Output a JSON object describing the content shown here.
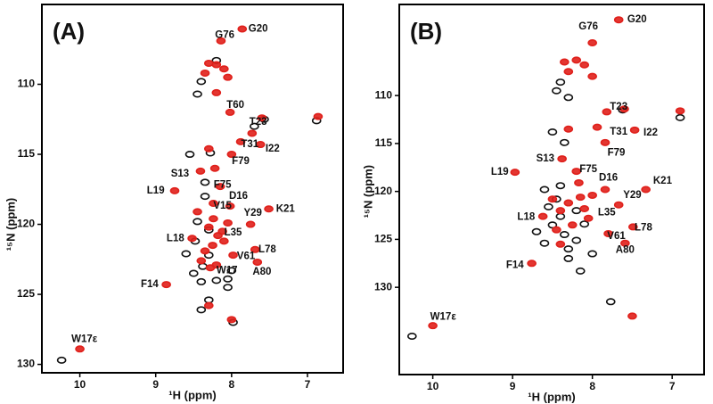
{
  "chart_data": [
    {
      "type": "scatter",
      "title": "(A)",
      "x_label": "¹H (ppm)",
      "y_label": "¹⁵N (ppm)",
      "xlim": [
        10.5,
        6.53
      ],
      "ylim": [
        104.3,
        130.6
      ],
      "xticks": [
        10,
        9,
        8,
        7
      ],
      "yticks": [
        110,
        115,
        120,
        125,
        130
      ],
      "series": [
        {
          "color": "#111111",
          "x": [
            10.24,
            8.4,
            8.45,
            8.2,
            7.7,
            7.57,
            6.88,
            8.55,
            8.28,
            8.35,
            8.3,
            8.48,
            8.38,
            8.5,
            8.4,
            8.2,
            8.05,
            8.3,
            8.6,
            8.45,
            8.0,
            8.4,
            8.3,
            7.98,
            8.05,
            8.35
          ],
          "y": [
            129.7,
            109.8,
            110.7,
            108.3,
            113.0,
            112.5,
            112.6,
            115.0,
            114.9,
            118.0,
            120.4,
            121.2,
            123.0,
            123.5,
            124.1,
            124.0,
            124.5,
            122.2,
            122.1,
            119.8,
            123.3,
            126.1,
            125.4,
            127.0,
            123.9,
            117.0
          ]
        },
        {
          "color": "#e0201b",
          "x": [
            7.86,
            8.14,
            8.02,
            7.73,
            7.88,
            7.62,
            8.0,
            8.41,
            8.75,
            8.24,
            8.02,
            7.51,
            8.24,
            7.75,
            8.12,
            8.52,
            7.69,
            7.98,
            7.66,
            8.28,
            8.86,
            10.0,
            8.3,
            8.2,
            8.1,
            8.35,
            8.05,
            8.2,
            8.18,
            8.25,
            8.35,
            8.1,
            8.3,
            8.4,
            8.2,
            8.05,
            8.15,
            8.3,
            8.22,
            7.6,
            6.86,
            8.45,
            8.0,
            8.3
          ],
          "y": [
            106.05,
            106.9,
            112.0,
            113.5,
            114.1,
            114.3,
            115.0,
            116.2,
            117.6,
            118.5,
            118.7,
            118.9,
            119.6,
            120.0,
            120.5,
            121.0,
            121.8,
            122.2,
            122.7,
            123.1,
            124.3,
            128.9,
            108.5,
            108.6,
            108.9,
            109.2,
            109.5,
            110.6,
            120.8,
            121.5,
            121.9,
            121.2,
            120.2,
            122.6,
            122.9,
            119.9,
            117.3,
            114.6,
            116.0,
            112.4,
            112.3,
            119.1,
            126.8,
            125.8
          ]
        }
      ],
      "annotations": [
        {
          "text": "G20",
          "x": 7.65,
          "y": 106.05
        },
        {
          "text": "G76",
          "x": 8.09,
          "y": 106.5
        },
        {
          "text": "T60",
          "x": 7.95,
          "y": 111.5
        },
        {
          "text": "T23",
          "x": 7.65,
          "y": 112.7
        },
        {
          "text": "T31",
          "x": 7.76,
          "y": 114.3
        },
        {
          "text": "I22",
          "x": 7.46,
          "y": 114.6
        },
        {
          "text": "F79",
          "x": 7.88,
          "y": 115.5
        },
        {
          "text": "S13",
          "x": 8.68,
          "y": 116.4
        },
        {
          "text": "L19",
          "x": 9.0,
          "y": 117.6
        },
        {
          "text": "F75",
          "x": 8.12,
          "y": 117.2
        },
        {
          "text": "D16",
          "x": 7.91,
          "y": 118.0
        },
        {
          "text": "K21",
          "x": 7.29,
          "y": 118.9
        },
        {
          "text": "V15",
          "x": 8.12,
          "y": 118.7
        },
        {
          "text": "Y29",
          "x": 7.72,
          "y": 119.2
        },
        {
          "text": "L35",
          "x": 7.98,
          "y": 120.6
        },
        {
          "text": "L18",
          "x": 8.74,
          "y": 121.0
        },
        {
          "text": "L78",
          "x": 7.53,
          "y": 121.8
        },
        {
          "text": "V61",
          "x": 7.81,
          "y": 122.3
        },
        {
          "text": "A80",
          "x": 7.6,
          "y": 123.4
        },
        {
          "text": "W17",
          "x": 8.06,
          "y": 123.3
        },
        {
          "text": "F14",
          "x": 9.08,
          "y": 124.3
        },
        {
          "text": "W17ε",
          "x": 9.94,
          "y": 128.2
        }
      ]
    },
    {
      "type": "scatter",
      "title": "(B)",
      "x_label": "¹H (ppm)",
      "y_label": "¹⁵N (ppm)",
      "xlim": [
        10.42,
        6.6
      ],
      "ylim": [
        100.5,
        139.1
      ],
      "xticks": [
        10,
        9,
        8,
        7
      ],
      "yticks": [
        110,
        115,
        120,
        125,
        130
      ],
      "series": [
        {
          "color": "#111111",
          "x": [
            10.26,
            8.4,
            8.45,
            8.3,
            7.62,
            6.9,
            8.5,
            8.35,
            8.4,
            8.45,
            8.55,
            8.4,
            8.5,
            8.35,
            8.2,
            8.3,
            8.6,
            8.1,
            8.6,
            8.2,
            8.0,
            8.15,
            7.77,
            8.3,
            8.7
          ],
          "y": [
            135.1,
            108.6,
            109.5,
            110.2,
            111.5,
            112.3,
            113.8,
            114.9,
            119.4,
            120.8,
            121.6,
            122.6,
            123.5,
            124.5,
            125.1,
            126.0,
            125.4,
            123.4,
            119.8,
            122.0,
            126.5,
            128.3,
            131.5,
            127.0,
            124.2
          ]
        },
        {
          "color": "#e0201b",
          "x": [
            7.67,
            8.0,
            7.82,
            7.94,
            7.47,
            7.84,
            8.38,
            8.97,
            8.17,
            7.84,
            7.33,
            7.67,
            8.05,
            8.62,
            7.49,
            7.8,
            7.59,
            8.76,
            10.0,
            8.35,
            8.2,
            8.1,
            8.3,
            8.0,
            8.15,
            8.3,
            8.4,
            8.1,
            8.25,
            8.45,
            8.0,
            8.2,
            8.3,
            7.6,
            6.9,
            8.5,
            8.4,
            7.5
          ],
          "y": [
            102.1,
            104.5,
            111.7,
            113.3,
            113.6,
            114.9,
            116.6,
            118.0,
            119.1,
            119.8,
            119.8,
            121.4,
            122.8,
            122.6,
            123.7,
            124.4,
            125.4,
            127.5,
            134.0,
            106.5,
            106.3,
            106.8,
            107.5,
            108.0,
            120.6,
            121.2,
            122.0,
            121.8,
            123.5,
            124.0,
            120.4,
            117.9,
            113.5,
            111.4,
            111.6,
            120.8,
            125.5,
            133.0
          ]
        }
      ],
      "annotations": [
        {
          "text": "G20",
          "x": 7.44,
          "y": 102.1
        },
        {
          "text": "G76",
          "x": 8.05,
          "y": 102.8
        },
        {
          "text": "T23",
          "x": 7.67,
          "y": 111.2
        },
        {
          "text": "T31",
          "x": 7.67,
          "y": 113.8
        },
        {
          "text": "I22",
          "x": 7.27,
          "y": 113.9
        },
        {
          "text": "F79",
          "x": 7.7,
          "y": 116.0
        },
        {
          "text": "S13",
          "x": 8.59,
          "y": 116.6
        },
        {
          "text": "L19",
          "x": 9.16,
          "y": 118.0
        },
        {
          "text": "F75",
          "x": 8.05,
          "y": 117.7
        },
        {
          "text": "D16",
          "x": 7.8,
          "y": 118.6
        },
        {
          "text": "K21",
          "x": 7.12,
          "y": 118.9
        },
        {
          "text": "Y29",
          "x": 7.5,
          "y": 120.4
        },
        {
          "text": "L35",
          "x": 7.82,
          "y": 122.2
        },
        {
          "text": "L18",
          "x": 8.83,
          "y": 122.7
        },
        {
          "text": "L78",
          "x": 7.36,
          "y": 123.8
        },
        {
          "text": "V61",
          "x": 7.7,
          "y": 124.7
        },
        {
          "text": "A80",
          "x": 7.59,
          "y": 126.1
        },
        {
          "text": "F14",
          "x": 8.97,
          "y": 127.7
        },
        {
          "text": "W17ε",
          "x": 9.87,
          "y": 133.1
        }
      ]
    }
  ]
}
